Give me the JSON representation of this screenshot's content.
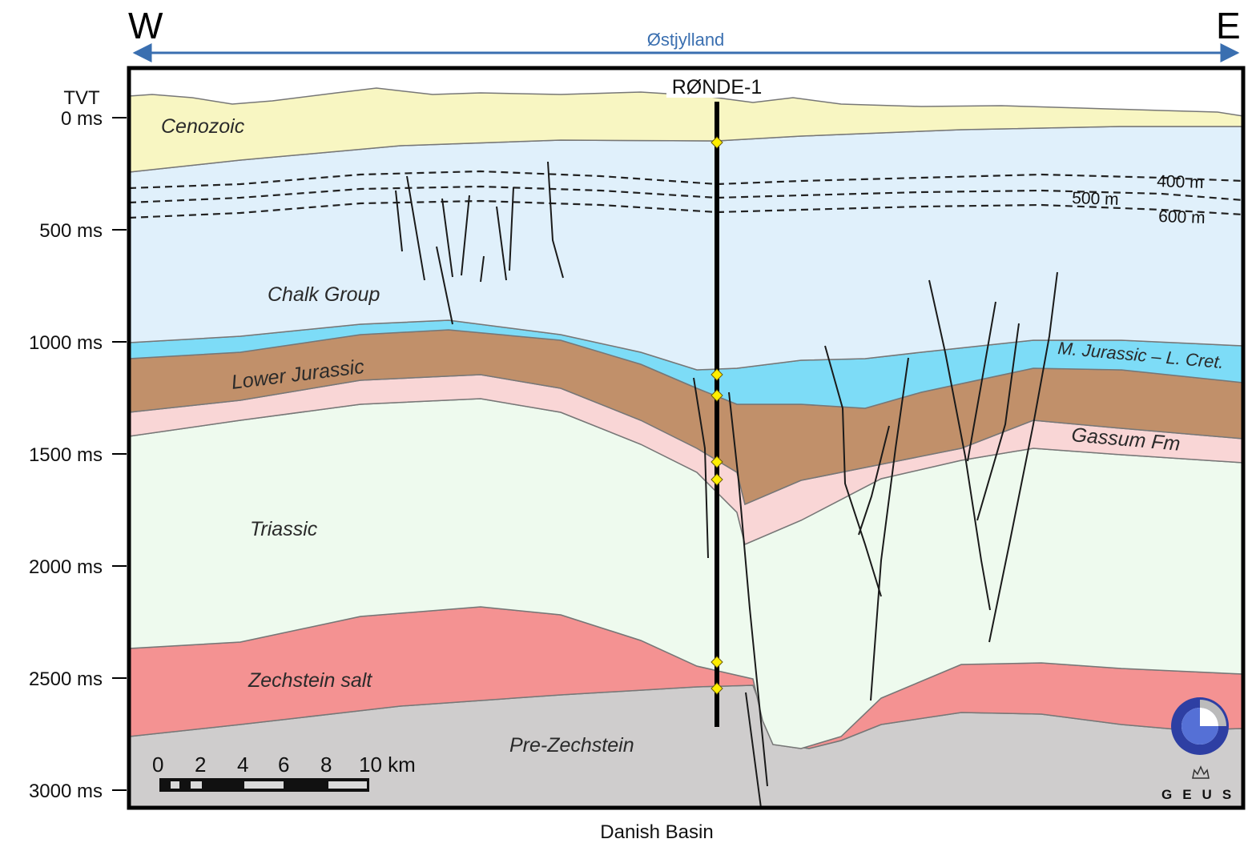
{
  "header": {
    "west": "W",
    "east": "E",
    "region": "Østjylland"
  },
  "footer": {
    "basin": "Danish Basin"
  },
  "axis": {
    "title": "TVT",
    "ticks": [
      "0 ms",
      "500 ms",
      "1000 ms",
      "1500 ms",
      "2000 ms",
      "2500 ms",
      "3000 ms"
    ]
  },
  "well": {
    "name": "RØNDE-1",
    "marker_color": "#ffee00"
  },
  "units": [
    {
      "name": "Cenozoic",
      "color": "#f8f6c2"
    },
    {
      "name": "Chalk Group",
      "color": "#e0f0fb"
    },
    {
      "name": "M. Jurassic – L. Cret.",
      "color": "#7ddcf7"
    },
    {
      "name": "Lower Jurassic",
      "color": "#c1906a"
    },
    {
      "name": "Gassum Fm",
      "color": "#f9d6d6"
    },
    {
      "name": "Triassic",
      "color": "#eefaee"
    },
    {
      "name": "Zechstein salt",
      "color": "#f49292"
    },
    {
      "name": "Pre-Zechstein",
      "color": "#cfcdcd"
    }
  ],
  "depth_contours": [
    "400 m",
    "500 m",
    "600 m"
  ],
  "scale_bar": {
    "labels": [
      "0",
      "2",
      "4",
      "6",
      "8",
      "10 km"
    ]
  },
  "logo": {
    "text": "GEUS"
  }
}
